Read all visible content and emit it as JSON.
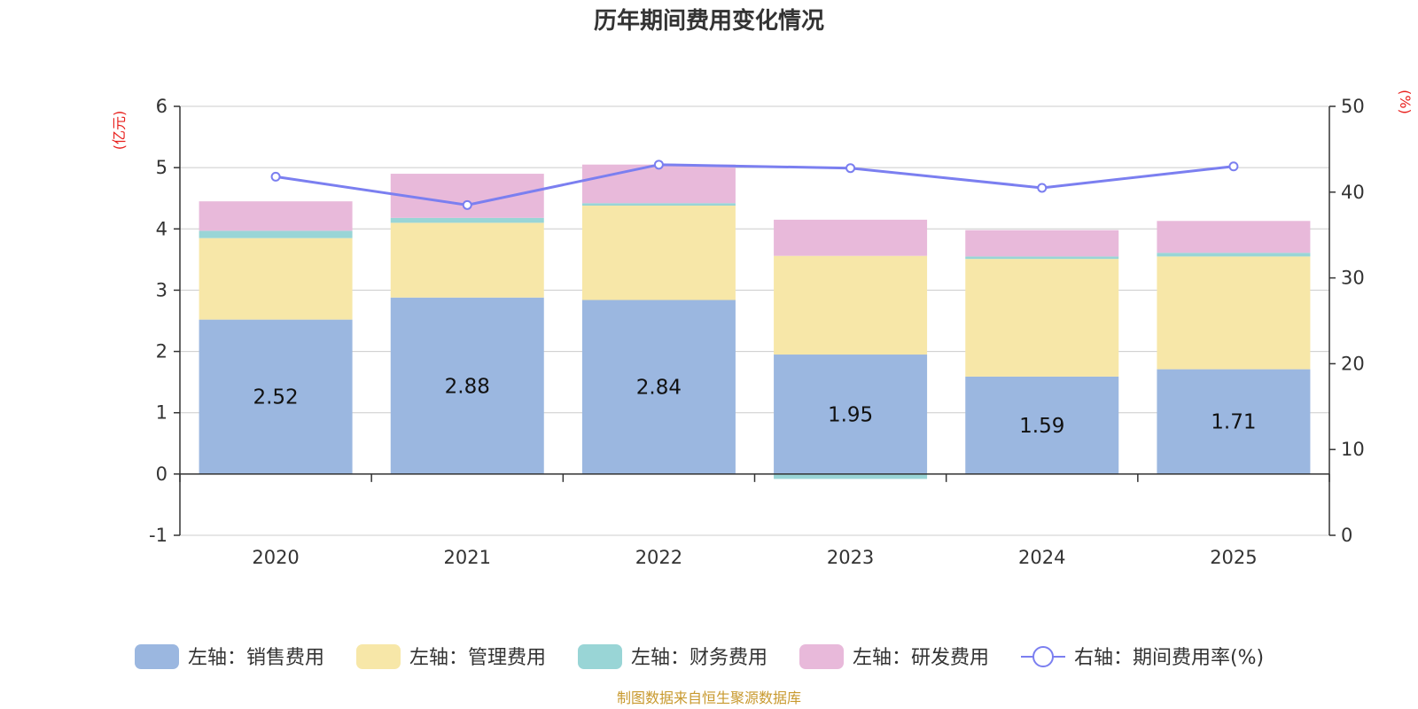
{
  "chart_data": {
    "type": "bar",
    "stacked": true,
    "title": "历年期间费用变化情况",
    "categories": [
      "2020",
      "2021",
      "2022",
      "2023",
      "2024",
      "2025"
    ],
    "left_axis": {
      "unit": "(亿元)",
      "ylim": [
        -1,
        6
      ],
      "ticks": [
        -1,
        0,
        1,
        2,
        3,
        4,
        5,
        6
      ]
    },
    "right_axis": {
      "unit": "(%)",
      "ylim": [
        0,
        50
      ],
      "ticks": [
        0,
        10,
        20,
        30,
        40,
        50
      ]
    },
    "series": [
      {
        "name": "左轴：销售费用",
        "axis": "left",
        "kind": "bar",
        "color": "#9bb7e0",
        "values": [
          2.52,
          2.88,
          2.84,
          1.95,
          1.59,
          1.71
        ]
      },
      {
        "name": "左轴：管理费用",
        "axis": "left",
        "kind": "bar",
        "color": "#f7e7a8",
        "values": [
          1.33,
          1.22,
          1.54,
          1.61,
          1.92,
          1.84
        ]
      },
      {
        "name": "左轴：财务费用",
        "axis": "left",
        "kind": "bar",
        "color": "#99d5d6",
        "values": [
          0.12,
          0.08,
          0.04,
          -0.08,
          0.04,
          0.06
        ]
      },
      {
        "name": "左轴：研发费用",
        "axis": "left",
        "kind": "bar",
        "color": "#e8b9da",
        "values": [
          0.48,
          0.72,
          0.63,
          0.59,
          0.43,
          0.52
        ]
      },
      {
        "name": "右轴：期间费用率(%)",
        "axis": "right",
        "kind": "line",
        "color": "#7b7ff0",
        "values": [
          41.8,
          38.5,
          43.2,
          42.8,
          40.5,
          43.0
        ]
      }
    ],
    "data_labels_series": 0,
    "legend_position": "bottom"
  },
  "colors": {
    "axis_unit": "#e8211e",
    "source": "#c8992e",
    "grid": "#cccccc"
  },
  "source_note": "制图数据来自恒生聚源数据库"
}
